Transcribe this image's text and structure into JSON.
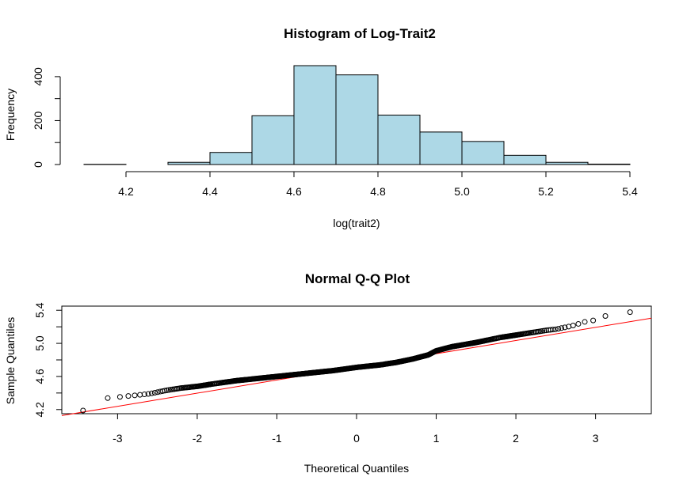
{
  "chart_data": [
    {
      "type": "bar",
      "subtype": "histogram",
      "title": "Histogram of Log-Trait2",
      "xlabel": "log(trait2)",
      "ylabel": "Frequency",
      "bin_edges": [
        4.1,
        4.2,
        4.3,
        4.4,
        4.5,
        4.6,
        4.7,
        4.8,
        4.9,
        5.0,
        5.1,
        5.2,
        5.3,
        5.4
      ],
      "values": [
        1,
        0,
        10,
        55,
        222,
        450,
        408,
        225,
        148,
        105,
        42,
        10,
        2
      ],
      "xlim": [
        4.1,
        5.4
      ],
      "ylim": [
        0,
        450
      ],
      "xticks": [
        "4.2",
        "4.4",
        "4.6",
        "4.8",
        "5.0",
        "5.2",
        "5.4"
      ],
      "yticks": [
        "0",
        "200",
        "400"
      ],
      "bar_color": "#add8e6"
    },
    {
      "type": "scatter",
      "title": "Normal Q-Q Plot",
      "xlabel": "Theoretical Quantiles",
      "ylabel": "Sample Quantiles",
      "xlim": [
        -3.7,
        3.7
      ],
      "ylim": [
        4.15,
        5.45
      ],
      "xticks": [
        "-3",
        "-2",
        "-1",
        "0",
        "1",
        "2",
        "3"
      ],
      "yticks": [
        "4.2",
        "4.6",
        "5.0",
        "5.4"
      ],
      "n_points": 1678,
      "quantile_curve": {
        "x": [
          -3.45,
          -3.12,
          -3.0,
          -2.9,
          -2.8,
          -2.7,
          -2.6,
          -2.5,
          -2.4,
          -2.2,
          -2.0,
          -1.8,
          -1.5,
          -1.2,
          -1.0,
          -0.8,
          -0.5,
          -0.3,
          0.0,
          0.3,
          0.5,
          0.7,
          0.9,
          1.0,
          1.2,
          1.5,
          1.8,
          2.0,
          2.2,
          2.4,
          2.5,
          2.6,
          2.7,
          2.8,
          2.9,
          3.0,
          3.12,
          3.45
        ],
        "y": [
          4.18,
          4.34,
          4.35,
          4.36,
          4.37,
          4.38,
          4.39,
          4.41,
          4.43,
          4.46,
          4.48,
          4.51,
          4.55,
          4.58,
          4.6,
          4.62,
          4.65,
          4.67,
          4.71,
          4.74,
          4.77,
          4.81,
          4.86,
          4.91,
          4.96,
          5.01,
          5.07,
          5.1,
          5.13,
          5.16,
          5.17,
          5.19,
          5.21,
          5.24,
          5.27,
          5.28,
          5.33,
          5.38
        ]
      },
      "reference_line": {
        "intercept": 4.716,
        "slope": 0.159,
        "color": "#ff0000"
      },
      "point_color": "#000000"
    }
  ]
}
